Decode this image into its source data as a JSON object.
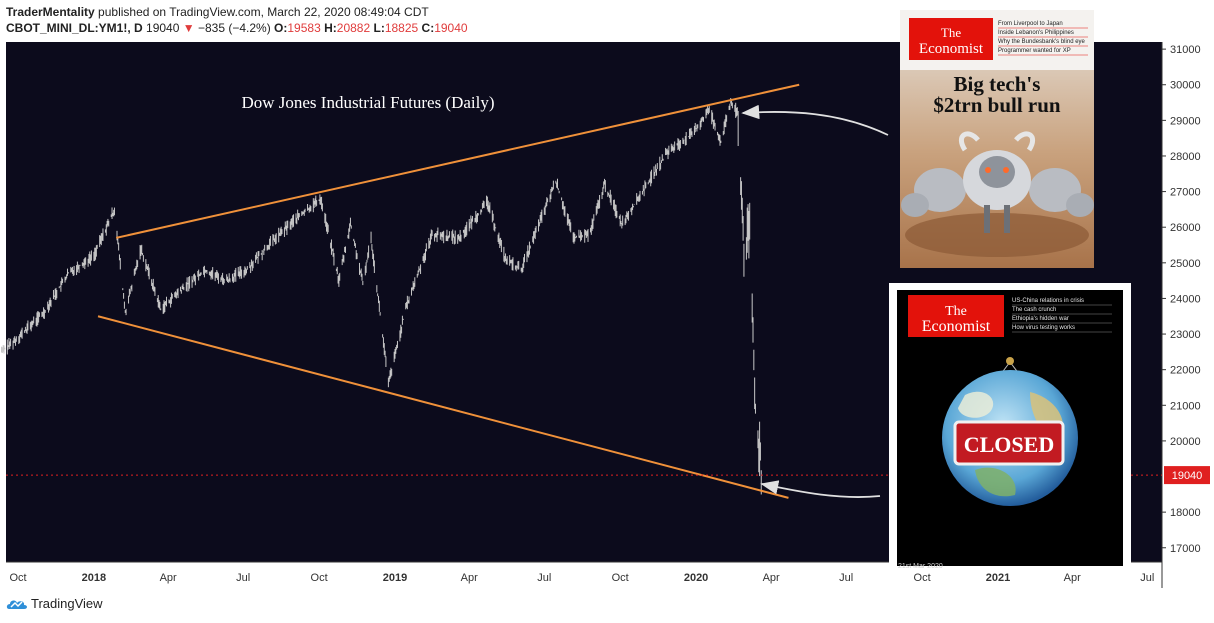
{
  "header": {
    "author": "TraderMentality",
    "published": "published on TradingView.com, March 22, 2020 08:49:04 CDT",
    "symbol": "CBOT_MINI_DL:YM1!, D",
    "last": "19040",
    "change": "−835 (−4.2%)",
    "o_label": "O:",
    "o": "19583",
    "h_label": "H:",
    "h": "20882",
    "l_label": "L:",
    "l": "18825",
    "c_label": "C:",
    "c": "19040"
  },
  "footer": {
    "brand": "TradingView",
    "logo_icon": "tradingview-cloud-icon"
  },
  "colors": {
    "background": "#0c0b1c",
    "candle": "#c8c8c8",
    "trendline": "#f0913a",
    "price_line": "#e02020",
    "badge": "#e02020"
  },
  "chart_data": {
    "type": "line",
    "title": "Dow Jones Industrial Futures (Daily)",
    "ylim": [
      16600,
      31200
    ],
    "y_ticks": [
      17000,
      18000,
      19000,
      20000,
      21000,
      22000,
      23000,
      24000,
      25000,
      26000,
      27000,
      28000,
      29000,
      30000,
      31000
    ],
    "x_ticks": [
      "Oct",
      "2018",
      "Apr",
      "Jul",
      "Oct",
      "2019",
      "Apr",
      "Jul",
      "Oct",
      "2020",
      "Apr",
      "Jul",
      "Oct",
      "2021",
      "Apr",
      "Jul"
    ],
    "last_price_label": "19040",
    "grid": false,
    "series": [
      {
        "x": [
          "2017-09-01",
          "2017-10-01",
          "2017-11-01",
          "2017-12-01",
          "2018-01-01",
          "2018-01-26",
          "2018-02-08",
          "2018-02-27",
          "2018-03-23",
          "2018-04-15",
          "2018-05-15",
          "2018-06-10",
          "2018-07-05",
          "2018-08-01",
          "2018-09-01",
          "2018-10-03",
          "2018-10-25",
          "2018-11-08",
          "2018-11-23",
          "2018-12-03",
          "2018-12-24",
          "2019-01-15",
          "2019-02-15",
          "2019-03-20",
          "2019-04-23",
          "2019-05-15",
          "2019-06-03",
          "2019-07-15",
          "2019-08-05",
          "2019-08-25",
          "2019-09-12",
          "2019-10-03",
          "2019-10-31",
          "2019-11-27",
          "2019-12-27",
          "2020-01-17",
          "2020-01-31",
          "2020-02-12",
          "2020-02-20",
          "2020-02-28",
          "2020-03-06",
          "2020-03-09",
          "2020-03-12",
          "2020-03-16",
          "2020-03-18",
          "2020-03-20"
        ],
        "values": [
          22300,
          22900,
          23600,
          24700,
          25200,
          26500,
          23600,
          25400,
          23700,
          24200,
          24800,
          24500,
          24800,
          25500,
          26200,
          26800,
          24500,
          26100,
          24400,
          25700,
          21600,
          23800,
          25800,
          25700,
          26700,
          25100,
          24800,
          27300,
          25700,
          25800,
          27200,
          26100,
          27100,
          28100,
          28600,
          29300,
          28400,
          29500,
          29200,
          25400,
          25900,
          23800,
          21200,
          20000,
          19900,
          19040
        ]
      }
    ],
    "trendlines": [
      {
        "name": "upper",
        "points": [
          [
            "2018-01-28",
            25700
          ],
          [
            "2020-05-05",
            30000
          ]
        ]
      },
      {
        "name": "lower",
        "points": [
          [
            "2018-01-06",
            23500
          ],
          [
            "2020-04-22",
            18400
          ]
        ]
      }
    ]
  },
  "covers": [
    {
      "brand_line1": "The",
      "brand_line2": "Economist",
      "headline_line1": "Big tech's",
      "headline_line2": "$2trn bull run",
      "teasers": [
        "From Liverpool to Japan",
        "Inside Lebanon's Philippines",
        "Why the Bundesbank's blind eye",
        "Programmer wanted for XP"
      ]
    },
    {
      "brand_line1": "The",
      "brand_line2": "Economist",
      "sign_text": "CLOSED",
      "date": "21st Mar 2020",
      "teasers": [
        "US-China relations in crisis",
        "The cash crunch",
        "Ethiopia's hidden war",
        "How virus testing works"
      ]
    }
  ]
}
